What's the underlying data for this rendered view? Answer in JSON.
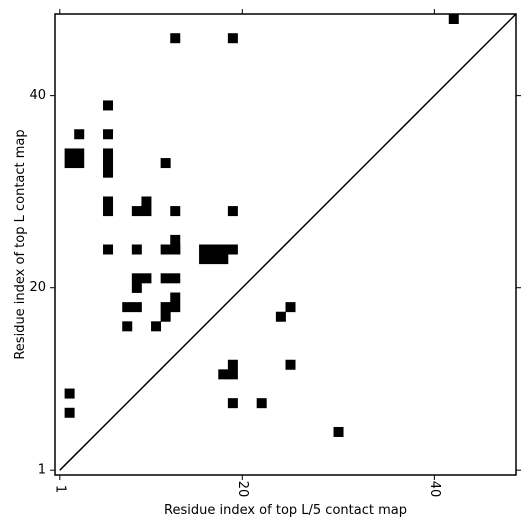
{
  "chart_data": {
    "type": "heatmap",
    "xlabel": "Residue index of top L/5 contact map",
    "ylabel": "Residue index of top L contact map",
    "xlim": [
      0.5,
      48.5
    ],
    "ylim": [
      0.5,
      48.5
    ],
    "x_ticks": [
      1,
      20,
      40
    ],
    "y_ticks": [
      1,
      20,
      40
    ],
    "x_tick_labels": [
      "1",
      "20",
      "40"
    ],
    "y_tick_labels": [
      "1",
      "20",
      "40"
    ],
    "diagonal": true,
    "colors": {
      "cell": "#000000",
      "background": "#ffffff",
      "axes": "#000000"
    },
    "cells": [
      [
        13,
        46
      ],
      [
        19,
        46
      ],
      [
        42,
        48
      ],
      [
        6,
        39
      ],
      [
        3,
        36
      ],
      [
        6,
        36
      ],
      [
        2,
        34
      ],
      [
        3,
        34
      ],
      [
        2,
        33
      ],
      [
        3,
        33
      ],
      [
        6,
        34
      ],
      [
        6,
        33
      ],
      [
        6,
        32
      ],
      [
        12,
        33
      ],
      [
        6,
        29
      ],
      [
        6,
        28
      ],
      [
        10,
        29
      ],
      [
        9,
        28
      ],
      [
        10,
        28
      ],
      [
        13,
        28
      ],
      [
        19,
        28
      ],
      [
        13,
        25
      ],
      [
        13,
        24
      ],
      [
        6,
        24
      ],
      [
        9,
        24
      ],
      [
        12,
        24
      ],
      [
        13,
        24
      ],
      [
        16,
        24
      ],
      [
        17,
        24
      ],
      [
        18,
        24
      ],
      [
        19,
        24
      ],
      [
        16,
        23
      ],
      [
        17,
        23
      ],
      [
        18,
        23
      ],
      [
        9,
        21
      ],
      [
        10,
        21
      ],
      [
        9,
        20
      ],
      [
        12,
        21
      ],
      [
        13,
        21
      ],
      [
        13,
        19
      ],
      [
        8,
        18
      ],
      [
        9,
        18
      ],
      [
        12,
        18
      ],
      [
        13,
        18
      ],
      [
        12,
        17
      ],
      [
        8,
        16
      ],
      [
        11,
        16
      ],
      [
        25,
        18
      ],
      [
        24,
        17
      ],
      [
        19,
        12
      ],
      [
        19,
        11
      ],
      [
        18,
        11
      ],
      [
        25,
        12
      ],
      [
        2,
        9
      ],
      [
        2,
        7
      ],
      [
        19,
        8
      ],
      [
        22,
        8
      ],
      [
        30,
        5
      ]
    ]
  }
}
